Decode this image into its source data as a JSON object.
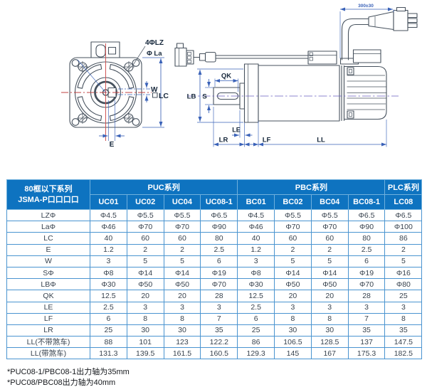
{
  "diagram": {
    "front": {
      "labels": {
        "holes": "4ΦLZ",
        "la": "Φ La",
        "w": "W",
        "lc": "LC",
        "e": "E"
      }
    },
    "side": {
      "labels": {
        "qk": "QK",
        "s": "S",
        "lb": "LB",
        "le": "LE",
        "lr": "LR",
        "lf": "LF",
        "ll": "LL",
        "cable_length": "300±30"
      }
    }
  },
  "table": {
    "corner": {
      "line1": "80框以下系列",
      "line2": "JSMA-P口口口口"
    },
    "groups": [
      {
        "label": "PUC系列",
        "span": 4
      },
      {
        "label": "PBC系列",
        "span": 4
      },
      {
        "label": "PLC系列",
        "span": 1
      }
    ],
    "columns": [
      "UC01",
      "UC02",
      "UC04",
      "UC08-1",
      "BC01",
      "BC02",
      "BC04",
      "BC08-1",
      "LC08"
    ],
    "rows": [
      {
        "label": "LZΦ",
        "values": [
          "Φ4.5",
          "Φ5.5",
          "Φ5.5",
          "Φ6.5",
          "Φ4.5",
          "Φ5.5",
          "Φ5.5",
          "Φ6.5",
          "Φ6.5"
        ]
      },
      {
        "label": "LaΦ",
        "values": [
          "Φ46",
          "Φ70",
          "Φ70",
          "Φ90",
          "Φ46",
          "Φ70",
          "Φ70",
          "Φ90",
          "Φ100"
        ]
      },
      {
        "label": "LC",
        "values": [
          "40",
          "60",
          "60",
          "80",
          "40",
          "60",
          "60",
          "80",
          "86"
        ]
      },
      {
        "label": "E",
        "values": [
          "1.2",
          "2",
          "2",
          "2.5",
          "1.2",
          "2",
          "2",
          "2.5",
          "2"
        ]
      },
      {
        "label": "W",
        "values": [
          "3",
          "5",
          "5",
          "6",
          "3",
          "5",
          "5",
          "6",
          "5"
        ]
      },
      {
        "label": "SΦ",
        "values": [
          "Φ8",
          "Φ14",
          "Φ14",
          "Φ19",
          "Φ8",
          "Φ14",
          "Φ14",
          "Φ19",
          "Φ16"
        ]
      },
      {
        "label": "LBΦ",
        "values": [
          "Φ30",
          "Φ50",
          "Φ50",
          "Φ70",
          "Φ30",
          "Φ50",
          "Φ50",
          "Φ70",
          "Φ80"
        ]
      },
      {
        "label": "QK",
        "values": [
          "12.5",
          "20",
          "20",
          "28",
          "12.5",
          "20",
          "20",
          "28",
          "25"
        ]
      },
      {
        "label": "LE",
        "values": [
          "2.5",
          "3",
          "3",
          "3",
          "2.5",
          "3",
          "3",
          "3",
          "3"
        ]
      },
      {
        "label": "LF",
        "values": [
          "6",
          "8",
          "8",
          "7",
          "6",
          "8",
          "8",
          "7",
          "8"
        ]
      },
      {
        "label": "LR",
        "values": [
          "25",
          "30",
          "30",
          "35",
          "25",
          "30",
          "30",
          "35",
          "35"
        ]
      },
      {
        "label": "LL(不带煞车)",
        "values": [
          "88",
          "101",
          "123",
          "122.2",
          "86",
          "106.5",
          "128.5",
          "137",
          "147.5"
        ]
      },
      {
        "label": "LL(带煞车)",
        "values": [
          "131.3",
          "139.5",
          "161.5",
          "160.5",
          "129.3",
          "145",
          "167",
          "175.3",
          "182.5"
        ]
      }
    ]
  },
  "footnotes": [
    "*PUC08-1/PBC08-1出力轴为35mm",
    "*PUC08/PBC08出力轴为40mm"
  ],
  "colors": {
    "header_bg": "#0e73c0",
    "table_border": "#4a94d0",
    "body_text": "#38434f",
    "dim_blue": "#3a62b8",
    "center_red": "#d05555",
    "outline": "#47525e",
    "label_dark": "#16273b"
  }
}
